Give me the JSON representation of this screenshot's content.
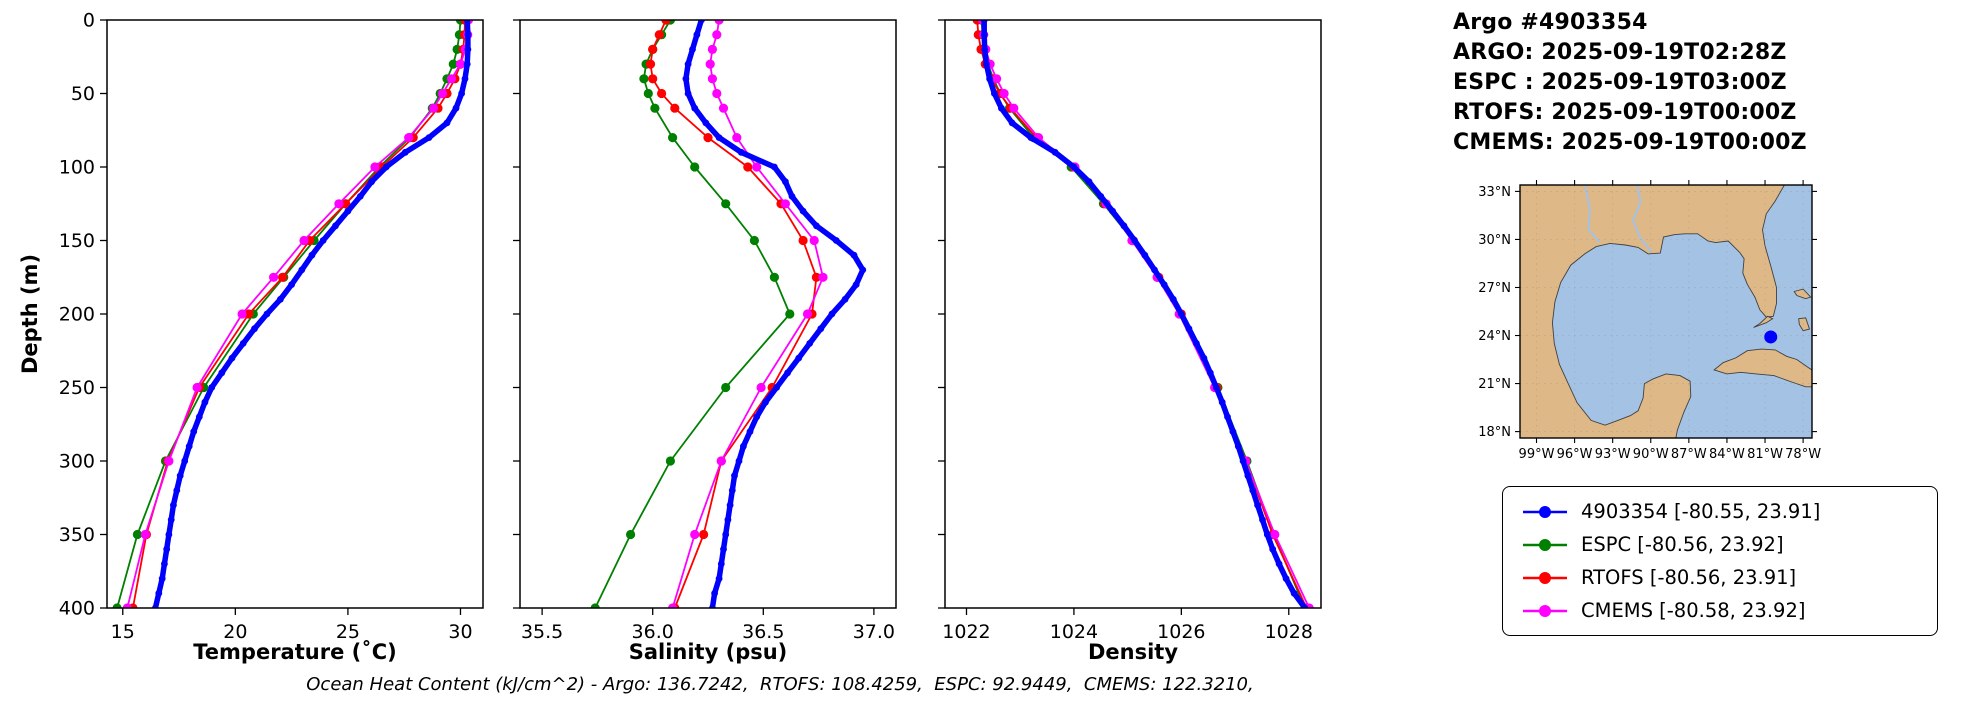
{
  "header": {
    "title": "Argo #4903354",
    "lines": [
      "ARGO: 2025-09-19T02:28Z",
      "ESPC : 2025-09-19T03:00Z",
      "RTOFS: 2025-09-19T00:00Z",
      "CMEMS: 2025-09-19T00:00Z"
    ]
  },
  "footer": {
    "ohc_note": "Ocean Heat Content (kJ/cm^2) - Argo: 136.7242,  RTOFS: 108.4259,  ESPC: 92.9449,  CMEMS: 122.3210,",
    "ohc_values": {
      "argo": 136.7242,
      "rtofs": 108.4259,
      "espc": 92.9449,
      "cmems": 122.321
    }
  },
  "colors": {
    "argo": "#0000ff",
    "espc": "#008000",
    "rtofs": "#ff0000",
    "cmems": "#ff00ff"
  },
  "depth_ticks": [
    0,
    50,
    100,
    150,
    200,
    250,
    300,
    350,
    400
  ],
  "depth_grids": {
    "argo": [
      0,
      10,
      20,
      30,
      40,
      50,
      60,
      70,
      80,
      90,
      100,
      110,
      120,
      130,
      140,
      150,
      160,
      170,
      180,
      190,
      200,
      210,
      220,
      230,
      240,
      250,
      260,
      270,
      280,
      290,
      300,
      310,
      320,
      330,
      340,
      350,
      360,
      370,
      380,
      390,
      400
    ],
    "model": [
      0,
      10,
      20,
      30,
      40,
      50,
      60,
      80,
      100,
      125,
      150,
      175,
      200,
      250,
      300,
      350,
      400
    ]
  },
  "chart_data": [
    {
      "id": "temperature",
      "type": "line",
      "xlabel": "Temperature (˚C)",
      "ylabel": "Depth (m)",
      "xlim": [
        14.3,
        31.0
      ],
      "ylim": [
        0,
        400
      ],
      "y_inverted": true,
      "xticks": {
        "values": [
          15,
          20,
          25,
          30
        ],
        "labels": [
          "15",
          "20",
          "25",
          "30"
        ]
      },
      "series": [
        {
          "name": "ESPC",
          "grid": "model",
          "color": "#008000",
          "lw": 1.8,
          "r": 4.6,
          "values": [
            30.0,
            29.95,
            29.85,
            29.68,
            29.4,
            29.1,
            28.75,
            27.75,
            26.4,
            24.9,
            23.5,
            22.15,
            20.8,
            18.6,
            16.9,
            15.65,
            14.75
          ]
        },
        {
          "name": "RTOFS",
          "grid": "model",
          "color": "#ff0000",
          "lw": 1.8,
          "r": 4.6,
          "values": [
            30.2,
            30.18,
            30.12,
            30.0,
            29.75,
            29.4,
            29.0,
            27.9,
            26.5,
            24.9,
            23.3,
            22.1,
            20.6,
            18.4,
            17.0,
            16.05,
            15.45
          ]
        },
        {
          "name": "CMEMS",
          "grid": "model",
          "color": "#ff00ff",
          "lw": 1.8,
          "r": 4.6,
          "values": [
            30.35,
            30.32,
            30.22,
            30.0,
            29.6,
            29.2,
            28.8,
            27.7,
            26.2,
            24.6,
            23.05,
            21.7,
            20.3,
            18.3,
            17.05,
            16.0,
            15.2
          ]
        },
        {
          "name": "4903354",
          "grid": "argo",
          "color": "#0000ff",
          "lw": 5.5,
          "r": 3.4,
          "values": [
            30.3,
            30.33,
            30.33,
            30.3,
            30.2,
            30.05,
            29.8,
            29.4,
            28.6,
            27.55,
            26.7,
            26.05,
            25.55,
            25.0,
            24.45,
            23.9,
            23.4,
            22.95,
            22.5,
            22.0,
            21.4,
            20.85,
            20.35,
            19.85,
            19.4,
            18.95,
            18.65,
            18.4,
            18.15,
            17.95,
            17.75,
            17.55,
            17.4,
            17.25,
            17.15,
            17.05,
            16.95,
            16.85,
            16.75,
            16.6,
            16.45
          ]
        }
      ]
    },
    {
      "id": "salinity",
      "type": "line",
      "xlabel": "Salinity (psu)",
      "ylabel": "Depth (m)",
      "xlim": [
        35.4,
        37.1
      ],
      "ylim": [
        0,
        400
      ],
      "y_inverted": true,
      "xticks": {
        "values": [
          35.5,
          36.0,
          36.5,
          37.0
        ],
        "labels": [
          "35.5",
          "36.0",
          "36.5",
          "37.0"
        ]
      },
      "series": [
        {
          "name": "ESPC",
          "grid": "model",
          "color": "#008000",
          "lw": 1.8,
          "r": 4.6,
          "values": [
            36.08,
            36.04,
            36.0,
            35.97,
            35.96,
            35.98,
            36.01,
            36.09,
            36.19,
            36.33,
            36.46,
            36.55,
            36.62,
            36.33,
            36.08,
            35.9,
            35.74
          ]
        },
        {
          "name": "RTOFS",
          "grid": "model",
          "color": "#ff0000",
          "lw": 1.8,
          "r": 4.6,
          "values": [
            36.06,
            36.03,
            36.0,
            35.99,
            36.0,
            36.04,
            36.1,
            36.25,
            36.43,
            36.58,
            36.68,
            36.74,
            36.72,
            36.54,
            36.31,
            36.23,
            36.1
          ]
        },
        {
          "name": "CMEMS",
          "grid": "model",
          "color": "#ff00ff",
          "lw": 1.8,
          "r": 4.6,
          "values": [
            36.3,
            36.29,
            36.27,
            36.26,
            36.27,
            36.29,
            36.32,
            36.38,
            36.47,
            36.6,
            36.73,
            36.77,
            36.7,
            36.49,
            36.31,
            36.19,
            36.09
          ]
        },
        {
          "name": "4903354",
          "grid": "argo",
          "color": "#0000ff",
          "lw": 5.5,
          "r": 3.4,
          "values": [
            36.22,
            36.2,
            36.18,
            36.16,
            36.15,
            36.16,
            36.19,
            36.24,
            36.3,
            36.4,
            36.55,
            36.6,
            36.63,
            36.68,
            36.74,
            36.83,
            36.91,
            36.95,
            36.92,
            36.87,
            36.81,
            36.76,
            36.71,
            36.66,
            36.61,
            36.56,
            36.51,
            36.47,
            36.44,
            36.41,
            36.39,
            36.37,
            36.36,
            36.35,
            36.34,
            36.33,
            36.32,
            36.31,
            36.3,
            36.28,
            36.27
          ]
        }
      ]
    },
    {
      "id": "density",
      "type": "line",
      "xlabel": "Density",
      "ylabel": "Depth (m)",
      "xlim": [
        1021.6,
        1028.6
      ],
      "ylim": [
        0,
        400
      ],
      "y_inverted": true,
      "xticks": {
        "values": [
          1022,
          1024,
          1026,
          1028
        ],
        "labels": [
          "1022",
          "1024",
          "1026",
          "1028"
        ]
      },
      "series": [
        {
          "name": "ESPC",
          "grid": "model",
          "color": "#008000",
          "lw": 1.8,
          "r": 4.6,
          "values": [
            1022.28,
            1022.3,
            1022.34,
            1022.4,
            1022.5,
            1022.63,
            1022.8,
            1023.25,
            1023.95,
            1024.55,
            1025.1,
            1025.55,
            1025.98,
            1026.68,
            1027.22,
            1027.72,
            1028.3
          ]
        },
        {
          "name": "RTOFS",
          "grid": "model",
          "color": "#ff0000",
          "lw": 1.8,
          "r": 4.6,
          "values": [
            1022.2,
            1022.22,
            1022.27,
            1022.35,
            1022.47,
            1022.62,
            1022.82,
            1023.3,
            1024.0,
            1024.58,
            1025.1,
            1025.58,
            1026.0,
            1026.66,
            1027.2,
            1027.7,
            1028.33
          ]
        },
        {
          "name": "CMEMS",
          "grid": "model",
          "color": "#ff00ff",
          "lw": 1.8,
          "r": 4.6,
          "values": [
            1022.3,
            1022.32,
            1022.36,
            1022.44,
            1022.56,
            1022.7,
            1022.88,
            1023.34,
            1024.02,
            1024.6,
            1025.08,
            1025.55,
            1025.96,
            1026.62,
            1027.2,
            1027.74,
            1028.38
          ]
        },
        {
          "name": "4903354",
          "grid": "argo",
          "color": "#0000ff",
          "lw": 5.5,
          "r": 3.4,
          "values": [
            1022.33,
            1022.33,
            1022.34,
            1022.37,
            1022.43,
            1022.52,
            1022.65,
            1022.85,
            1023.2,
            1023.65,
            1024.0,
            1024.28,
            1024.5,
            1024.72,
            1024.93,
            1025.13,
            1025.32,
            1025.5,
            1025.68,
            1025.85,
            1026.0,
            1026.14,
            1026.28,
            1026.42,
            1026.54,
            1026.65,
            1026.76,
            1026.86,
            1026.96,
            1027.06,
            1027.15,
            1027.24,
            1027.33,
            1027.42,
            1027.51,
            1027.6,
            1027.7,
            1027.82,
            1027.95,
            1028.1,
            1028.3
          ]
        }
      ]
    }
  ],
  "map": {
    "extent": {
      "lon": [
        -100.3,
        -77.3
      ],
      "lat": [
        17.6,
        33.4
      ]
    },
    "lat_ticks": {
      "values": [
        33,
        30,
        27,
        24,
        21,
        18
      ],
      "labels": [
        "33°N",
        "30°N",
        "27°N",
        "24°N",
        "21°N",
        "18°N"
      ]
    },
    "lon_ticks": {
      "values": [
        -99,
        -96,
        -93,
        -90,
        -87,
        -84,
        -81,
        -78
      ],
      "labels": [
        "99°W",
        "96°W",
        "93°W",
        "90°W",
        "87°W",
        "84°W",
        "81°W",
        "78°W"
      ]
    },
    "marker": {
      "lon": -80.55,
      "lat": 23.91,
      "color": "#0000ff"
    },
    "colors": {
      "land": "#deb887",
      "water": "#a4c2e4",
      "coast": "#404040"
    }
  },
  "legend": {
    "items": [
      {
        "label": "4903354 [-80.55, 23.91]",
        "color": "#0000ff"
      },
      {
        "label": "ESPC [-80.56, 23.92]",
        "color": "#008000"
      },
      {
        "label": "RTOFS [-80.56, 23.91]",
        "color": "#ff0000"
      },
      {
        "label": "CMEMS [-80.58, 23.92]",
        "color": "#ff00ff"
      }
    ]
  }
}
